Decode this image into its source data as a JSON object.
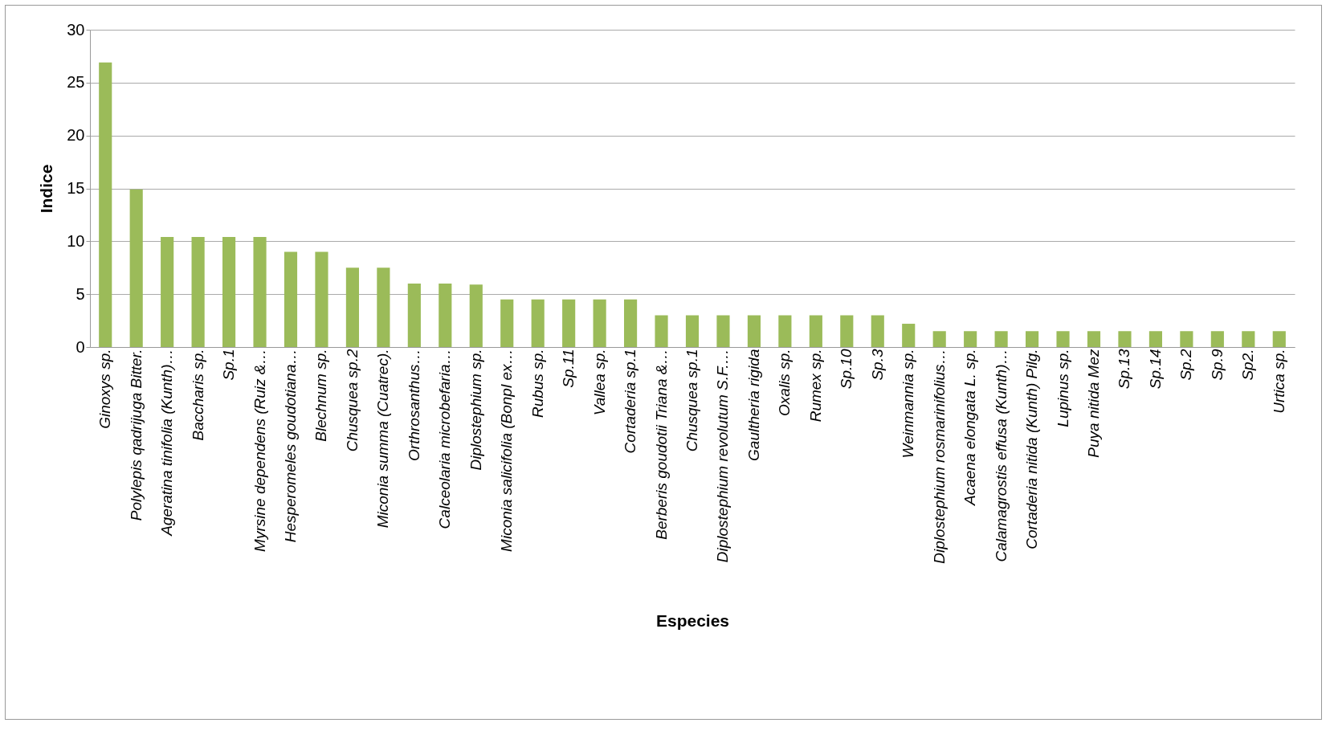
{
  "chart_data": {
    "type": "bar",
    "xlabel": "Especies",
    "ylabel": "Indice",
    "categories": [
      "Ginoxys sp.",
      "Polylepis qadrijuga Bitter.",
      "Ageratina tinifolia (Kunth)…",
      "Baccharis sp.",
      "Sp.1",
      "Myrsine dependens (Ruiz &…",
      "Hesperomeles goudotiana…",
      "Blechnum sp.",
      "Chusquea sp.2",
      "Miconia summa (Cuatrec).",
      "Orthrosanthus…",
      "Calceolaria microbefaria…",
      "Diplostephium sp.",
      "Miconia salicifolia (Bonpl ex…",
      "Rubus sp.",
      "Sp.11",
      "Vallea sp.",
      "Cortaderia sp.1",
      "Berberis goudotii Triana &…",
      "Chusquea sp.1",
      "Diplostephium revolutum S.F.…",
      "Gaultheria rigida",
      "Oxalis sp.",
      "Rumex sp.",
      "Sp.10",
      "Sp.3",
      "Weinmannia sp.",
      "Diplostephium rosmarinifolius…",
      "Acaena elongata L. sp.",
      "Calamagrostis effusa (Kunth)…",
      "Cortaderia nitida (Kunth) Pilg.",
      "Lupinus sp.",
      "Puya nitida Mez",
      "Sp.13",
      "Sp.14",
      "Sp.2",
      "Sp.9",
      "Sp2.",
      "Urtica sp."
    ],
    "values": [
      26.9,
      14.9,
      10.4,
      10.4,
      10.4,
      10.4,
      9.0,
      9.0,
      7.5,
      7.5,
      6.0,
      6.0,
      5.9,
      4.5,
      4.5,
      4.5,
      4.5,
      4.5,
      3.0,
      3.0,
      3.0,
      3.0,
      3.0,
      3.0,
      3.0,
      3.0,
      2.2,
      1.5,
      1.5,
      1.5,
      1.5,
      1.5,
      1.5,
      1.5,
      1.5,
      1.5,
      1.5,
      1.5,
      1.5
    ],
    "color": "#9bbb59",
    "ylim": [
      0,
      30
    ],
    "yticks": [
      0,
      5,
      10,
      15,
      20,
      25,
      30
    ],
    "grid": "y"
  }
}
